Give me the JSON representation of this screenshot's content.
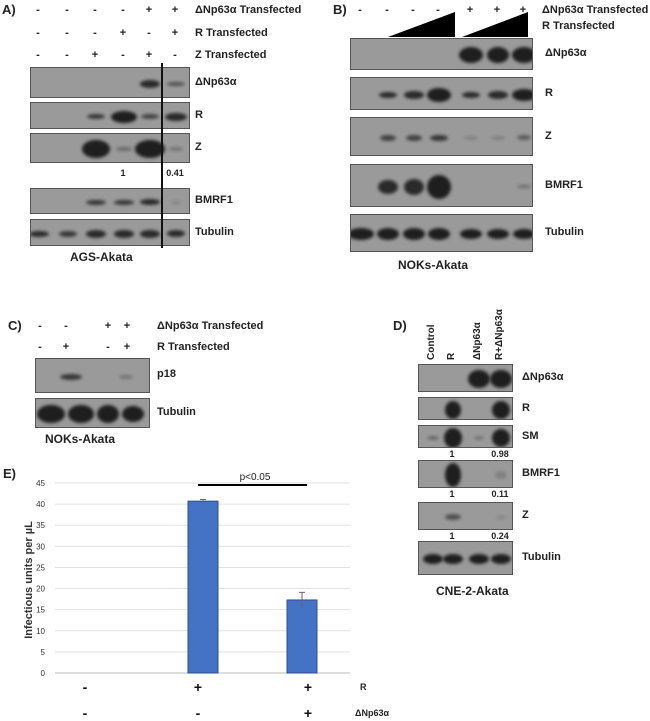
{
  "panelA": {
    "label": "A)",
    "rows": [
      {
        "label": "ΔNp63α Transfected",
        "signs": [
          "-",
          "-",
          "-",
          "-",
          "+",
          "+"
        ]
      },
      {
        "label": "R Transfected",
        "signs": [
          "-",
          "-",
          "-",
          "+",
          "-",
          "+"
        ]
      },
      {
        "label": "Z Transfected",
        "signs": [
          "-",
          "-",
          "+",
          "-",
          "+",
          "-"
        ]
      }
    ],
    "blots": [
      "ΔNp63α",
      "R",
      "Z",
      "BMRF1",
      "Tubulin"
    ],
    "z_quant": [
      "1",
      "0.41"
    ],
    "cell_line": "AGS-Akata"
  },
  "panelB": {
    "label": "B)",
    "rows": [
      {
        "label": "ΔNp63α Transfected",
        "signs": [
          "-",
          "-",
          "-",
          "-",
          "+",
          "+",
          "+"
        ]
      },
      {
        "label": "R Transfected"
      }
    ],
    "blots": [
      "ΔNp63α",
      "R",
      "Z",
      "BMRF1",
      "Tubulin"
    ],
    "cell_line": "NOKs-Akata"
  },
  "panelC": {
    "label": "C)",
    "rows": [
      {
        "label": "ΔNp63α Transfected",
        "signs": [
          "-",
          "-",
          "+",
          "+"
        ]
      },
      {
        "label": "R Transfected",
        "signs": [
          "-",
          "+",
          "-",
          "+"
        ]
      }
    ],
    "blots": [
      "p18",
      "Tubulin"
    ],
    "cell_line": "NOKs-Akata"
  },
  "panelD": {
    "label": "D)",
    "lanes": [
      "Control",
      "R",
      "ΔNp63α",
      "R+ΔNp63α"
    ],
    "blots": [
      "ΔNp63α",
      "R",
      "SM",
      "BMRF1",
      "Z",
      "Tubulin"
    ],
    "sm_quant": [
      "1",
      "0.98"
    ],
    "bmrf1_quant": [
      "1",
      "0.11"
    ],
    "z_quant": [
      "1",
      "0.24"
    ],
    "cell_line": "CNE-2-Akata"
  },
  "panelE": {
    "label": "E)"
  },
  "chart_data": {
    "type": "bar",
    "ylabel": "Infectious units per µL",
    "ylim": [
      0,
      45
    ],
    "yticks": [
      "0",
      "5",
      "10",
      "15",
      "20",
      "25",
      "30",
      "35",
      "40",
      "45"
    ],
    "grid": true,
    "bar_color": "#4472c4",
    "categories": [
      "-/-",
      "+/-",
      "+/+"
    ],
    "values": [
      0,
      40.7,
      17.3
    ],
    "errors": [
      0,
      0.4,
      1.8
    ],
    "condition_rows": [
      {
        "label": "R",
        "signs": [
          "-",
          "+",
          "+"
        ]
      },
      {
        "label": "ΔNp63α",
        "signs": [
          "-",
          "-",
          "+"
        ]
      }
    ],
    "annotation": "p<0.05"
  }
}
